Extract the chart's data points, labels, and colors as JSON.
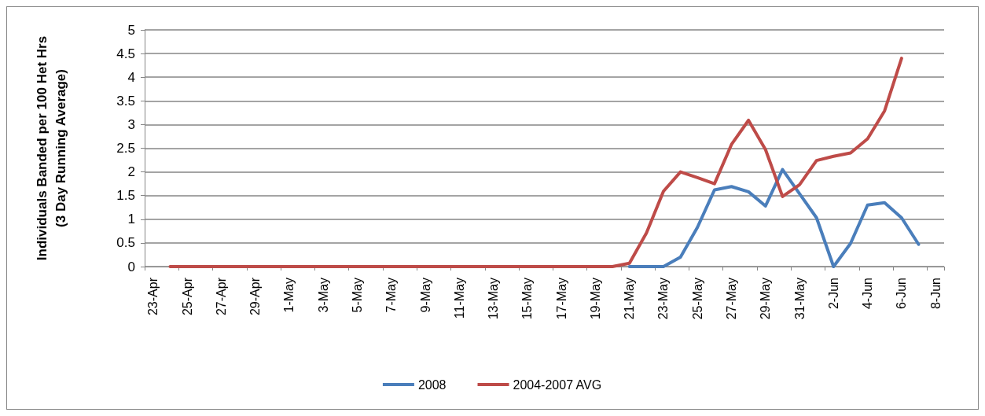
{
  "chart_data": {
    "type": "line",
    "ylabel": "Individuals Banded per 100 Het Hrs\n(3 Day Running Average)",
    "categories": [
      "23-Apr",
      null,
      "25-Apr",
      null,
      "27-Apr",
      null,
      "29-Apr",
      null,
      "1-May",
      null,
      "3-May",
      null,
      "5-May",
      null,
      "7-May",
      null,
      "9-May",
      null,
      "11-May",
      null,
      "13-May",
      null,
      "15-May",
      null,
      "17-May",
      null,
      "19-May",
      null,
      "21-May",
      null,
      "23-May",
      null,
      "25-May",
      null,
      "27-May",
      null,
      "29-May",
      null,
      "31-May",
      null,
      "2-Jun",
      null,
      "4-Jun",
      null,
      "6-Jun",
      null,
      "8-Jun"
    ],
    "series": [
      {
        "name": "2008",
        "color": "#4a7ebb",
        "values": [
          null,
          null,
          null,
          null,
          null,
          null,
          null,
          null,
          null,
          null,
          null,
          null,
          null,
          null,
          null,
          null,
          null,
          null,
          null,
          null,
          null,
          null,
          null,
          null,
          null,
          null,
          null,
          null,
          0,
          0,
          0,
          0.2,
          0.83,
          1.62,
          1.69,
          1.58,
          1.28,
          2.05,
          1.54,
          1.03,
          0,
          0.49,
          1.3,
          1.35,
          1.03,
          0.47,
          null
        ]
      },
      {
        "name": "2004-2007 AVG",
        "color": "#be4b48",
        "values": [
          null,
          0,
          0,
          0,
          0,
          0,
          0,
          0,
          0,
          0,
          0,
          0,
          0,
          0,
          0,
          0,
          0,
          0,
          0,
          0,
          0,
          0,
          0,
          0,
          0,
          0,
          0,
          0,
          0.07,
          0.71,
          1.59,
          2.0,
          1.88,
          1.75,
          2.58,
          3.09,
          2.47,
          1.48,
          1.73,
          2.24,
          2.33,
          2.4,
          2.7,
          3.29,
          4.4,
          null,
          null
        ]
      }
    ],
    "ylim": [
      0,
      5
    ],
    "yticks": [
      0,
      0.5,
      1,
      1.5,
      2,
      2.5,
      3,
      3.5,
      4,
      4.5,
      5
    ],
    "grid": "y",
    "legend": "bottom",
    "marker": "none",
    "line_style": "solid"
  }
}
